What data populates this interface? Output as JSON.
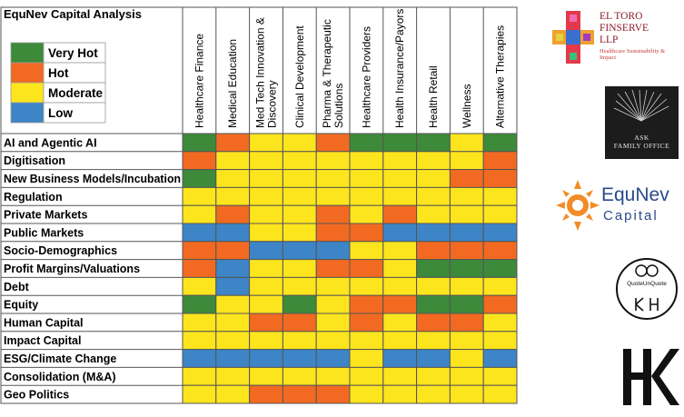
{
  "chart_data": {
    "type": "heatmap",
    "title": "EquNev Capital Analysis",
    "legend": [
      {
        "label": "Very Hot",
        "level": "very_hot",
        "color": "#3d8a3b"
      },
      {
        "label": "Hot",
        "level": "hot",
        "color": "#f26a21"
      },
      {
        "label": "Moderate",
        "level": "moderate",
        "color": "#fde51e"
      },
      {
        "label": "Low",
        "level": "low",
        "color": "#3d85c6"
      }
    ],
    "columns": [
      "Healthcare Finance",
      "Medical Education",
      "Med Tech Innovation & Discovery",
      "Clinical Development",
      "Pharma & Therapeutic Solutions",
      "Healthcare Providers",
      "Health Insurance/Payors",
      "Health Retail",
      "Wellness",
      "Alternative Therapies"
    ],
    "rows": [
      {
        "label": "AI and Agentic AI",
        "cells": [
          "very_hot",
          "hot",
          "moderate",
          "moderate",
          "hot",
          "very_hot",
          "very_hot",
          "very_hot",
          "moderate",
          "very_hot"
        ]
      },
      {
        "label": "Digitisation",
        "cells": [
          "hot",
          "moderate",
          "moderate",
          "moderate",
          "moderate",
          "moderate",
          "moderate",
          "moderate",
          "moderate",
          "hot"
        ]
      },
      {
        "label": "New Business Models/Incubation",
        "cells": [
          "very_hot",
          "moderate",
          "moderate",
          "moderate",
          "moderate",
          "moderate",
          "moderate",
          "moderate",
          "hot",
          "hot"
        ]
      },
      {
        "label": "Regulation",
        "cells": [
          "moderate",
          "moderate",
          "moderate",
          "moderate",
          "moderate",
          "moderate",
          "moderate",
          "moderate",
          "moderate",
          "moderate"
        ]
      },
      {
        "label": "Private Markets",
        "cells": [
          "moderate",
          "hot",
          "moderate",
          "moderate",
          "hot",
          "moderate",
          "hot",
          "moderate",
          "moderate",
          "moderate"
        ]
      },
      {
        "label": "Public Markets",
        "cells": [
          "low",
          "low",
          "moderate",
          "moderate",
          "hot",
          "hot",
          "low",
          "low",
          "low",
          "low"
        ]
      },
      {
        "label": "Socio-Demographics",
        "cells": [
          "hot",
          "hot",
          "low",
          "low",
          "low",
          "moderate",
          "moderate",
          "hot",
          "hot",
          "hot"
        ]
      },
      {
        "label": "Profit Margins/Valuations",
        "cells": [
          "hot",
          "low",
          "moderate",
          "moderate",
          "hot",
          "hot",
          "moderate",
          "very_hot",
          "very_hot",
          "very_hot"
        ]
      },
      {
        "label": "Debt",
        "cells": [
          "moderate",
          "low",
          "moderate",
          "moderate",
          "moderate",
          "moderate",
          "moderate",
          "moderate",
          "moderate",
          "moderate"
        ]
      },
      {
        "label": "Equity",
        "cells": [
          "very_hot",
          "moderate",
          "moderate",
          "very_hot",
          "moderate",
          "hot",
          "hot",
          "very_hot",
          "very_hot",
          "hot"
        ]
      },
      {
        "label": "Human Capital",
        "cells": [
          "moderate",
          "moderate",
          "hot",
          "hot",
          "moderate",
          "hot",
          "moderate",
          "hot",
          "hot",
          "moderate"
        ]
      },
      {
        "label": "Impact Capital",
        "cells": [
          "moderate",
          "moderate",
          "moderate",
          "moderate",
          "moderate",
          "moderate",
          "moderate",
          "moderate",
          "moderate",
          "moderate"
        ]
      },
      {
        "label": "ESG/Climate Change",
        "cells": [
          "low",
          "low",
          "low",
          "low",
          "low",
          "moderate",
          "low",
          "low",
          "moderate",
          "low"
        ]
      },
      {
        "label": "Consolidation (M&A)",
        "cells": [
          "moderate",
          "moderate",
          "moderate",
          "moderate",
          "moderate",
          "moderate",
          "moderate",
          "moderate",
          "moderate",
          "moderate"
        ]
      },
      {
        "label": "Geo Politics",
        "cells": [
          "moderate",
          "moderate",
          "hot",
          "hot",
          "hot",
          "moderate",
          "moderate",
          "moderate",
          "moderate",
          "moderate"
        ]
      }
    ]
  },
  "logos": {
    "el_toro": {
      "line1": "EL TORO",
      "line2": "FINSERVE",
      "line3": "LLP",
      "tagline": "Healthcare Sustainability & Impact"
    },
    "ask": {
      "line1": "ASK",
      "line2": "FAMILY OFFICE"
    },
    "equnev": {
      "brand": "EquNev",
      "sub": "Capital"
    },
    "quote": {
      "text": "QuoteUnQuote"
    },
    "hk": {
      "text": "HK"
    }
  },
  "colors": {
    "grid": "#555555",
    "logo_blue": "#2a4a8a",
    "logo_orange": "#f28c28"
  }
}
